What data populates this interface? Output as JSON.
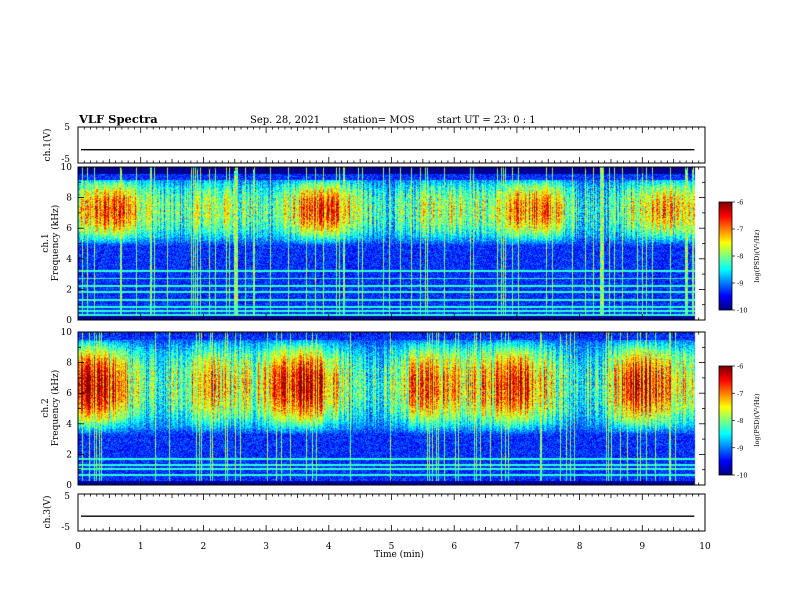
{
  "header": {
    "title": "VLF Spectra",
    "date": "Sep. 28, 2021",
    "station": "station= MOS",
    "start": "start  UT =   23: 0  : 1"
  },
  "chart_data": {
    "type": "heatmap",
    "xlabel": "Time  (min)",
    "xlim": [
      0,
      10
    ],
    "x_ticks": [
      "0",
      "1",
      "2",
      "3",
      "4",
      "5",
      "6",
      "7",
      "8",
      "9",
      "10"
    ],
    "data_end_min": 9.83,
    "panels": [
      {
        "id": "ch1_waveform",
        "kind": "line",
        "ylabel": "ch.1(V)",
        "ylim": [
          -5,
          5
        ],
        "y_ticks": [
          "5",
          "-5"
        ],
        "level_V": -1.3
      },
      {
        "id": "ch1_spectrogram",
        "kind": "heatmap",
        "ylabel_top": "ch.1",
        "ylabel": "Frequency  (kHz)",
        "ylim": [
          0,
          10
        ],
        "y_ticks": [
          "0",
          "2",
          "4",
          "6",
          "8",
          "10"
        ],
        "band_khz": [
          4.5,
          9.2
        ],
        "peak_khz": 7.2,
        "peak_level": 0.72,
        "lines_khz": [
          0.3,
          0.55,
          0.8,
          1.3,
          1.8,
          2.2,
          2.7,
          3.2
        ],
        "colorbar": {
          "label": "log(PSD)(V²/Hz)",
          "range": [
            -10,
            -6
          ],
          "ticks": [
            "-6",
            "-7",
            "-8",
            "-9",
            "-10"
          ]
        }
      },
      {
        "id": "ch2_spectrogram",
        "kind": "heatmap",
        "ylabel_top": "ch.2",
        "ylabel": "Frequency  (kHz)",
        "ylim": [
          0,
          10
        ],
        "y_ticks": [
          "0",
          "2",
          "4",
          "6",
          "8",
          "10"
        ],
        "band_khz": [
          3.0,
          9.5
        ],
        "peak_khz": 6.5,
        "peak_level": 0.88,
        "lines_khz": [
          0.6,
          1.0,
          1.3,
          1.7
        ],
        "colorbar": {
          "label": "log(PSD)(V²/Hz)",
          "range": [
            -10,
            -6
          ],
          "ticks": [
            "-6",
            "-7",
            "-8",
            "-9",
            "-10"
          ]
        }
      },
      {
        "id": "ch3_waveform",
        "kind": "line",
        "ylabel": "ch.3(V)",
        "ylim": [
          -5,
          5
        ],
        "y_ticks": [
          "5",
          "-5"
        ],
        "level_V": -1.0
      }
    ]
  }
}
